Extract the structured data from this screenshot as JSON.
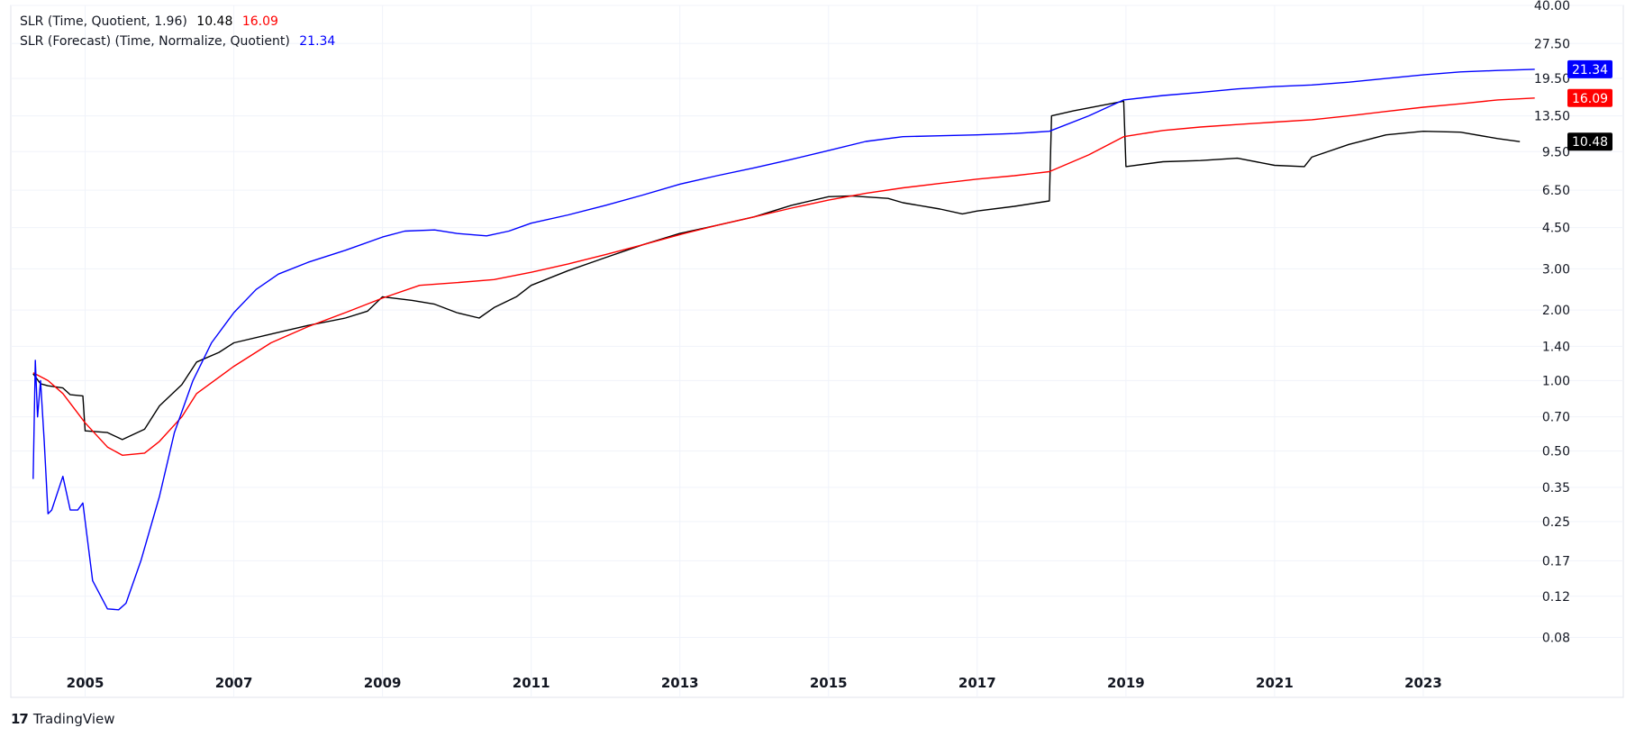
{
  "legend": [
    {
      "label": "SLR (Time, Quotient, 1.96)",
      "values": [
        "10.48",
        "16.09"
      ],
      "colors": [
        "#000000",
        "#ff0000"
      ]
    },
    {
      "label": "SLR (Forecast) (Time, Normalize, Quotient)",
      "values": [
        "21.34"
      ],
      "colors": [
        "#0000ff"
      ]
    }
  ],
  "brand": {
    "logo": "17",
    "name": "TradingView"
  },
  "chart_data": {
    "type": "line",
    "yscale": "log",
    "ylim": [
      0.06,
      40
    ],
    "xlim": [
      2004.0,
      2025.0
    ],
    "y_ticks": [
      "40.00",
      "27.50",
      "19.50",
      "13.50",
      "9.50",
      "6.50",
      "4.50",
      "3.00",
      "2.00",
      "1.40",
      "1.00",
      "0.70",
      "0.50",
      "0.35",
      "0.25",
      "0.17",
      "0.12",
      "0.08"
    ],
    "x_ticks": [
      "2005",
      "2007",
      "2009",
      "2011",
      "2013",
      "2015",
      "2017",
      "2019",
      "2021",
      "2023"
    ],
    "grid": true,
    "price_labels": [
      {
        "text": "21.34",
        "value": 21.34,
        "color": "#0000ff"
      },
      {
        "text": "16.09",
        "value": 16.09,
        "color": "#ff0000"
      },
      {
        "text": "10.48",
        "value": 10.48,
        "color": "#000000"
      }
    ],
    "series": [
      {
        "color": "#000000",
        "x": [
          2004.3,
          2004.4,
          2004.5,
          2004.7,
          2004.8,
          2004.97,
          2005.0,
          2005.3,
          2005.5,
          2005.8,
          2006.0,
          2006.3,
          2006.5,
          2006.8,
          2007.0,
          2007.5,
          2008.0,
          2008.5,
          2008.8,
          2009.0,
          2009.4,
          2009.7,
          2010.0,
          2010.3,
          2010.5,
          2010.8,
          2011.0,
          2011.5,
          2012.0,
          2012.5,
          2013.0,
          2013.5,
          2014.0,
          2014.5,
          2015.0,
          2015.3,
          2015.8,
          2016.0,
          2016.5,
          2016.8,
          2017.0,
          2017.5,
          2017.97,
          2018.0,
          2018.3,
          2018.6,
          2018.97,
          2019.0,
          2019.5,
          2020.0,
          2020.5,
          2021.0,
          2021.4,
          2021.5,
          2022.0,
          2022.5,
          2023.0,
          2023.5,
          2024.0,
          2024.3
        ],
        "y": [
          1.07,
          0.97,
          0.95,
          0.93,
          0.87,
          0.86,
          0.61,
          0.6,
          0.56,
          0.62,
          0.78,
          0.96,
          1.2,
          1.32,
          1.45,
          1.58,
          1.72,
          1.85,
          1.98,
          2.28,
          2.2,
          2.12,
          1.95,
          1.85,
          2.05,
          2.28,
          2.55,
          2.95,
          3.35,
          3.8,
          4.25,
          4.6,
          5.0,
          5.6,
          6.1,
          6.15,
          6.0,
          5.75,
          5.4,
          5.15,
          5.3,
          5.55,
          5.85,
          13.5,
          14.2,
          14.8,
          15.6,
          8.2,
          8.6,
          8.7,
          8.9,
          8.3,
          8.2,
          9.0,
          10.2,
          11.2,
          11.6,
          11.5,
          10.8,
          10.48
        ]
      },
      {
        "color": "#ff0000",
        "x": [
          2004.3,
          2004.5,
          2004.7,
          2005.0,
          2005.3,
          2005.5,
          2005.8,
          2006.0,
          2006.3,
          2006.5,
          2007.0,
          2007.5,
          2008.0,
          2008.5,
          2009.0,
          2009.5,
          2010.0,
          2010.5,
          2011.0,
          2011.5,
          2012.0,
          2012.5,
          2013.0,
          2013.5,
          2014.0,
          2014.5,
          2015.0,
          2015.5,
          2016.0,
          2016.5,
          2017.0,
          2017.5,
          2017.97,
          2018.5,
          2018.97,
          2019.5,
          2020.0,
          2020.5,
          2021.0,
          2021.5,
          2022.0,
          2022.5,
          2023.0,
          2023.5,
          2024.0,
          2024.5
        ],
        "y": [
          1.08,
          1.0,
          0.88,
          0.66,
          0.52,
          0.48,
          0.49,
          0.55,
          0.7,
          0.88,
          1.15,
          1.45,
          1.7,
          1.95,
          2.25,
          2.55,
          2.62,
          2.7,
          2.9,
          3.15,
          3.45,
          3.8,
          4.2,
          4.6,
          5.0,
          5.45,
          5.9,
          6.3,
          6.65,
          6.95,
          7.25,
          7.5,
          7.8,
          9.2,
          11.0,
          11.7,
          12.1,
          12.4,
          12.7,
          13.0,
          13.5,
          14.1,
          14.7,
          15.2,
          15.8,
          16.09
        ]
      },
      {
        "color": "#0000ff",
        "x": [
          2004.3,
          2004.33,
          2004.36,
          2004.4,
          2004.45,
          2004.5,
          2004.55,
          2004.7,
          2004.8,
          2004.9,
          2004.97,
          2005.1,
          2005.3,
          2005.45,
          2005.55,
          2005.75,
          2006.0,
          2006.2,
          2006.45,
          2006.7,
          2007.0,
          2007.3,
          2007.6,
          2008.0,
          2008.5,
          2009.0,
          2009.3,
          2009.7,
          2010.0,
          2010.4,
          2010.7,
          2011.0,
          2011.5,
          2012.0,
          2012.5,
          2013.0,
          2013.5,
          2014.0,
          2014.5,
          2015.0,
          2015.5,
          2016.0,
          2016.5,
          2017.0,
          2017.5,
          2017.97,
          2018.5,
          2018.97,
          2019.5,
          2020.0,
          2020.5,
          2021.0,
          2021.5,
          2022.0,
          2022.5,
          2023.0,
          2023.5,
          2024.0,
          2024.5
        ],
        "y": [
          0.38,
          1.22,
          0.7,
          1.0,
          0.55,
          0.27,
          0.28,
          0.39,
          0.28,
          0.28,
          0.3,
          0.14,
          0.106,
          0.105,
          0.112,
          0.17,
          0.32,
          0.6,
          1.0,
          1.45,
          1.95,
          2.45,
          2.85,
          3.2,
          3.6,
          4.1,
          4.35,
          4.4,
          4.25,
          4.15,
          4.35,
          4.7,
          5.1,
          5.6,
          6.2,
          6.9,
          7.5,
          8.1,
          8.8,
          9.6,
          10.5,
          11.0,
          11.1,
          11.2,
          11.35,
          11.6,
          13.5,
          15.8,
          16.5,
          17.0,
          17.6,
          18.0,
          18.3,
          18.8,
          19.5,
          20.2,
          20.8,
          21.1,
          21.34
        ]
      }
    ]
  }
}
